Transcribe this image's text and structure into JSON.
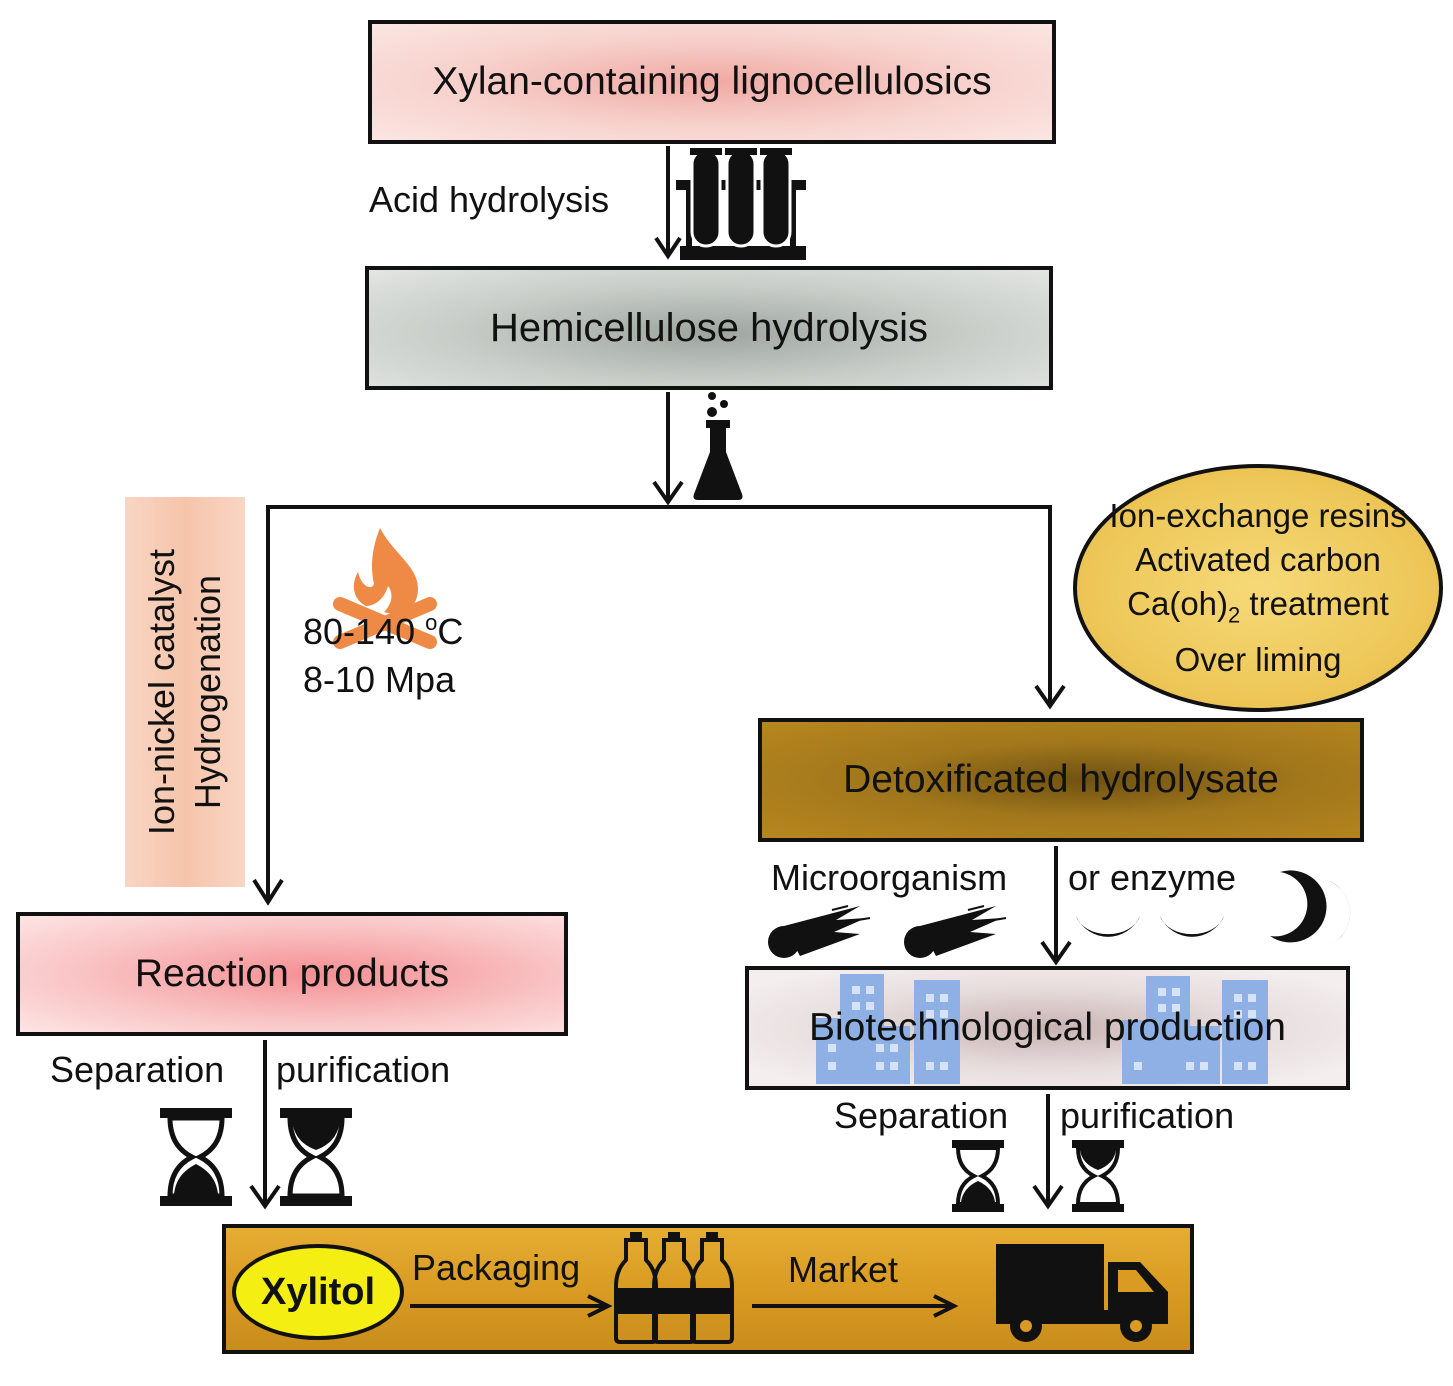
{
  "boxes": {
    "xylan": "Xylan-containing lignocellulosics",
    "hemicellulose": "Hemicellulose hydrolysis",
    "reaction": "Reaction products",
    "detox": "Detoxificated hydrolysate",
    "biotech": "Biotechnological production"
  },
  "labels": {
    "acid": "Acid hydrolysis",
    "catalyst": "Ion-nickel catalyst",
    "hydrogenation": "Hydrogenation",
    "temp_value": "80-140 ",
    "temp_unit": "o",
    "temp_c": "C",
    "pressure": "8-10 Mpa",
    "micro": "Microorganism",
    "enzyme": "or enzyme",
    "sep_left": "Separation",
    "pur_left": "purification",
    "sep_right": "Separation",
    "pur_right": "purification"
  },
  "detox_methods": {
    "m1": "Ion-exchange resins",
    "m2": "Activated carbon",
    "m3_a": "Ca(oh)",
    "m3_sub": "2",
    "m3_b": " treatment",
    "m4": "Over liming"
  },
  "final": {
    "product": "Xylitol",
    "packaging": "Packaging",
    "market": "Market"
  },
  "icons": [
    "test-tubes-icon",
    "flask-icon",
    "fire-icon",
    "comet-icon",
    "crescent-icon",
    "building-icon",
    "hourglass-icon",
    "bottle-icon",
    "truck-icon"
  ],
  "colors": {
    "fire": "#ee8a45",
    "building": "#8fb0e4",
    "final_bar": "#d99b22",
    "xylitol": "#f4ee12"
  }
}
